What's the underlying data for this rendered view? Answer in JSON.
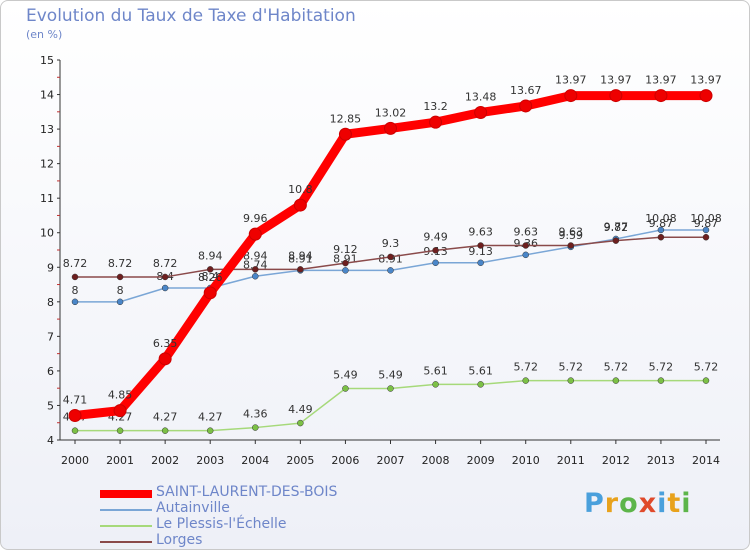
{
  "header": {
    "title": "Evolution du Taux de Taxe d'Habitation",
    "unit": "(en %)"
  },
  "logo": {
    "text": "Proxiti",
    "letters": [
      {
        "ch": "P",
        "color": "#4aa0dc"
      },
      {
        "ch": "r",
        "color": "#e8a21c"
      },
      {
        "ch": "o",
        "color": "#5db54a"
      },
      {
        "ch": "x",
        "color": "#e04a2b"
      },
      {
        "ch": "i",
        "color": "#4aa0dc"
      },
      {
        "ch": "t",
        "color": "#e8a21c"
      },
      {
        "ch": "i",
        "color": "#5db54a"
      }
    ]
  },
  "chart_data": {
    "type": "line",
    "title": "Evolution du Taux de Taxe d'Habitation",
    "ylabel": "(en %)",
    "xlabel": "",
    "ylim": [
      4,
      15
    ],
    "yticks": [
      4,
      5,
      6,
      7,
      8,
      9,
      10,
      11,
      12,
      13,
      14,
      15
    ],
    "grid": false,
    "legend_position": "bottom-left",
    "categories": [
      "2000",
      "2001",
      "2002",
      "2003",
      "2004",
      "2005",
      "2006",
      "2007",
      "2008",
      "2009",
      "2010",
      "2011",
      "2012",
      "2013",
      "2014"
    ],
    "series": [
      {
        "name": "SAINT-LAURENT-DES-BOIS",
        "color": "#ff0000",
        "marker": "#ee0000",
        "values": [
          4.71,
          4.85,
          6.35,
          8.26,
          9.96,
          10.8,
          12.85,
          13.02,
          13.2,
          13.48,
          13.67,
          13.97,
          13.97,
          13.97,
          13.97
        ],
        "labels": [
          "4.71",
          "4.85",
          "6.35",
          "8.26",
          "9.96",
          "10.8",
          "12.85",
          "13.02",
          "13.2",
          "13.48",
          "13.67",
          "13.97",
          "13.97",
          "13.97",
          "13.97"
        ]
      },
      {
        "name": "Autainville",
        "color": "#7aa6d6",
        "marker": "#4a86c8",
        "values": [
          8,
          8,
          8.4,
          8.4,
          8.74,
          8.91,
          8.91,
          8.91,
          9.13,
          9.13,
          9.36,
          9.59,
          9.82,
          10.08,
          10.08
        ],
        "labels": [
          "8",
          "8",
          "8.4",
          "8.4",
          "8.74",
          "8.91",
          "8.91",
          "8.91",
          "9.13",
          "9.13",
          "9.36",
          "9.59",
          "9.82",
          "10.08",
          "10.08"
        ]
      },
      {
        "name": "Le Plessis-l'Échelle",
        "color": "#a6d97a",
        "marker": "#7cc046",
        "values": [
          4.27,
          4.27,
          4.27,
          4.27,
          4.36,
          4.49,
          5.49,
          5.49,
          5.61,
          5.61,
          5.72,
          5.72,
          5.72,
          5.72,
          5.72
        ],
        "labels": [
          "4.27",
          "4.27",
          "4.27",
          "4.27",
          "4.36",
          "4.49",
          "5.49",
          "5.49",
          "5.61",
          "5.61",
          "5.72",
          "5.72",
          "5.72",
          "5.72",
          "5.72"
        ]
      },
      {
        "name": "Lorges",
        "color": "#8a4a4a",
        "marker": "#6e1f1f",
        "values": [
          8.72,
          8.72,
          8.72,
          8.94,
          8.94,
          8.94,
          9.12,
          9.3,
          9.49,
          9.63,
          9.63,
          9.63,
          9.77,
          9.87,
          9.87
        ],
        "labels": [
          "8.72",
          "8.72",
          "8.72",
          "8.94",
          "8.94",
          "8.94",
          "9.12",
          "9.3",
          "9.49",
          "9.63",
          "9.63",
          "9.63",
          "9.77",
          "9.87",
          "9.87"
        ]
      }
    ]
  }
}
